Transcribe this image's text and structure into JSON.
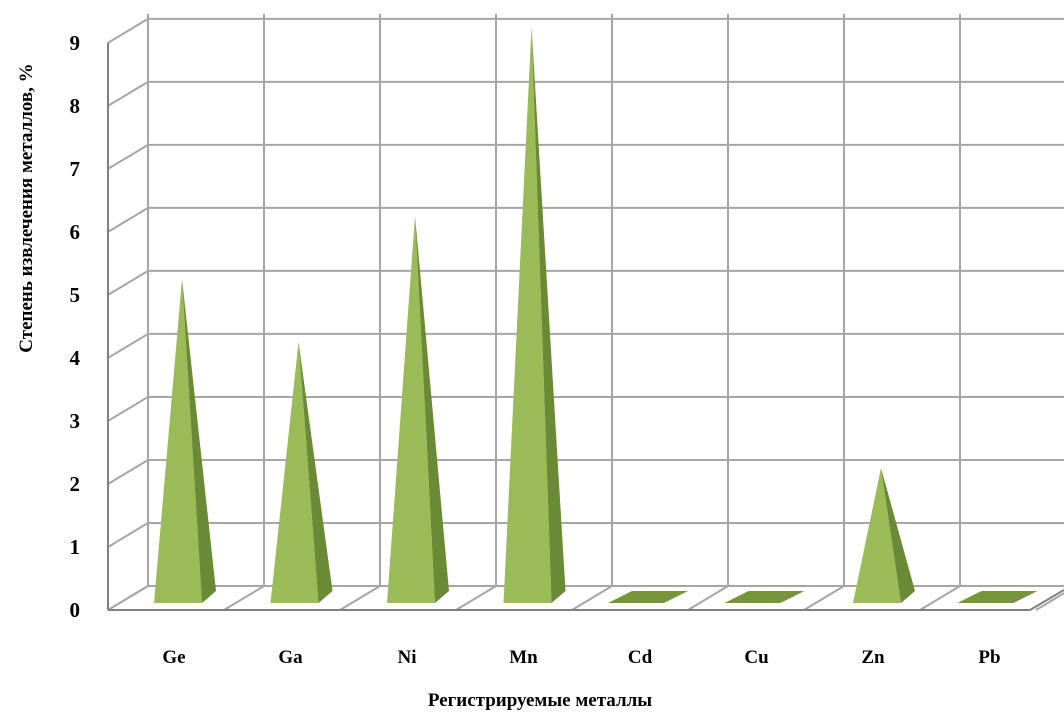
{
  "chart_data": {
    "type": "bar",
    "bar_shape": "pyramid-3d",
    "categories": [
      "Ge",
      "Ga",
      "Ni",
      "Mn",
      "Cd",
      "Cu",
      "Zn",
      "Pb"
    ],
    "values": [
      5,
      4,
      6,
      9,
      0,
      0,
      2,
      0
    ],
    "xlabel": "Регистрируемые металлы",
    "ylabel": "Степень извлечения металлов, %",
    "ylim": [
      0,
      9
    ],
    "yticks": [
      "0",
      "1",
      "2",
      "3",
      "4",
      "5",
      "6",
      "7",
      "8",
      "9"
    ],
    "grid": true,
    "legend": "none",
    "colors": {
      "bar_front": "#9bbb59",
      "bar_side": "#6b8a35",
      "bar_flat": "#77933c",
      "grid": "#a6a6a6",
      "axis": "#808080"
    }
  }
}
